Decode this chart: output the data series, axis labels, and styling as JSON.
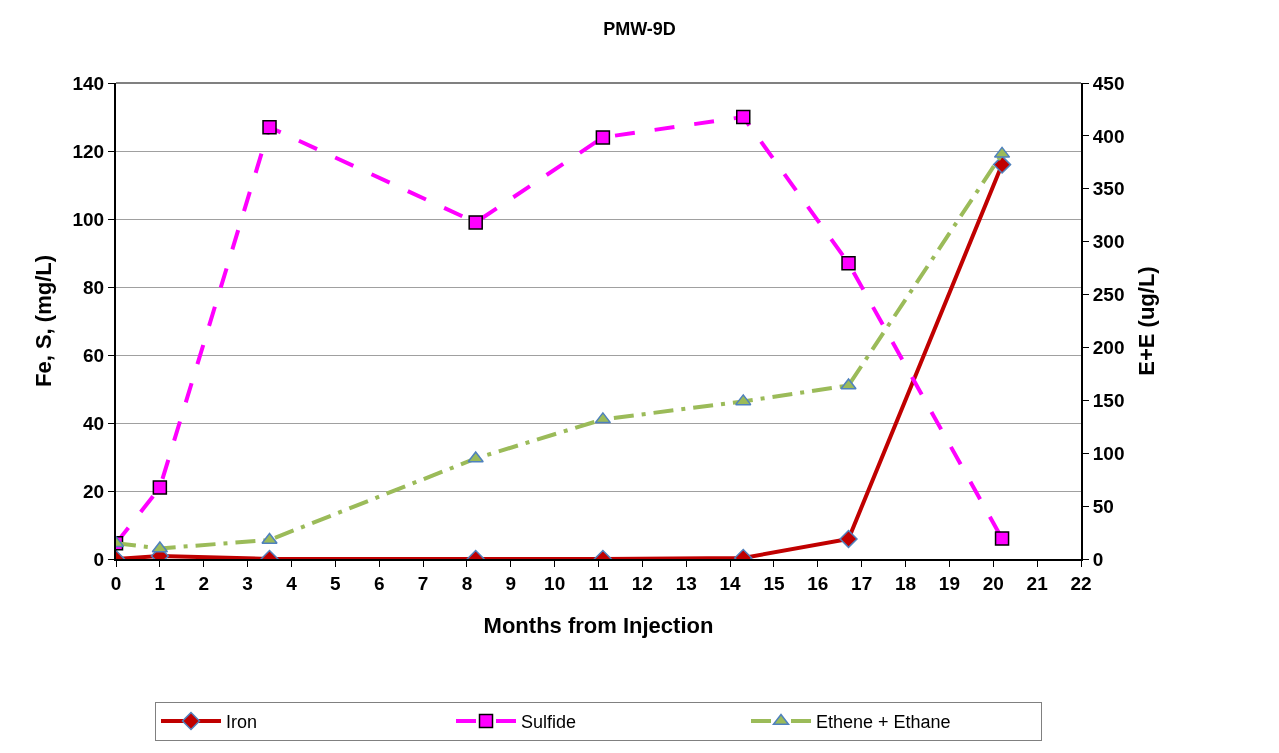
{
  "chart_data": {
    "type": "line",
    "title": "PMW-9D",
    "xlabel": "Months from Injection",
    "ylabel": "Fe, S, (mg/L)",
    "y2label": "E+E (ug/L)",
    "xlim": [
      0,
      22
    ],
    "xticks": [
      0,
      1,
      2,
      3,
      4,
      5,
      6,
      7,
      8,
      9,
      10,
      11,
      12,
      13,
      14,
      15,
      16,
      17,
      18,
      19,
      20,
      21,
      22
    ],
    "ylim": [
      0,
      140
    ],
    "yticks": [
      0,
      20,
      40,
      60,
      80,
      100,
      120,
      140
    ],
    "y2lim": [
      0,
      450
    ],
    "y2ticks": [
      0,
      50,
      100,
      150,
      200,
      250,
      300,
      350,
      400,
      450
    ],
    "x": [
      0,
      1,
      3.5,
      8.2,
      11.1,
      14.3,
      16.7,
      20.2
    ],
    "grid": "y",
    "legend": "bottom",
    "series": [
      {
        "name": "Iron",
        "color": "#c00000",
        "marker": "diamond",
        "line_style": "solid",
        "values": [
          0,
          0.9,
          0,
          0,
          0,
          0.3,
          5.9,
          116
        ]
      },
      {
        "name": "Sulfide",
        "color": "#ff00ff",
        "marker": "square",
        "line_style": "dashed",
        "values": [
          4.6,
          21,
          127,
          99,
          124,
          130,
          87,
          6
        ]
      },
      {
        "name": "Ethene + Ethane",
        "color": "#9bbb59",
        "marker": "triangle",
        "line_style": "dashdot",
        "axis": "y2",
        "values": [
          15,
          10,
          18,
          95,
          132,
          149,
          164,
          383
        ]
      }
    ]
  }
}
